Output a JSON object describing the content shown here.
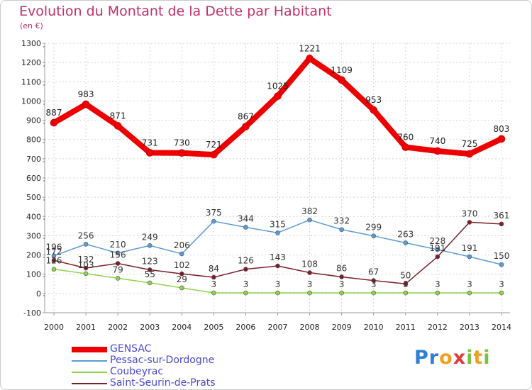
{
  "header": {
    "title": "Evolution du Montant de la Dette par Habitant",
    "unit": "(en €)"
  },
  "brand": {
    "letters": [
      {
        "ch": "P",
        "color": "#2f7fd6"
      },
      {
        "ch": "r",
        "color": "#2f7fd6"
      },
      {
        "ch": "o",
        "color": "#f0a020"
      },
      {
        "ch": "x",
        "color": "#e03a3a"
      },
      {
        "ch": "i",
        "color": "#7ac043"
      },
      {
        "ch": "t",
        "color": "#f0a020"
      },
      {
        "ch": "i",
        "color": "#7ac043"
      }
    ]
  },
  "chart_data": {
    "type": "line",
    "x": [
      2000,
      2001,
      2002,
      2003,
      2004,
      2005,
      2006,
      2007,
      2008,
      2009,
      2010,
      2011,
      2012,
      2013,
      2014
    ],
    "x_tick_labels": [
      "2000",
      "2001",
      "2002",
      "2003",
      "2004",
      "2005",
      "2006",
      "2007",
      "2008",
      "2009",
      "2010",
      "2011",
      "2012",
      "2013",
      "2014"
    ],
    "y_tick_labels": [
      "-100",
      "0",
      "100",
      "200",
      "300",
      "400",
      "500",
      "600",
      "700",
      "800",
      "900",
      "1000",
      "1100",
      "1200",
      "1300"
    ],
    "ylim": [
      -100,
      1300
    ],
    "grid": true,
    "legend_position": "bottom-left",
    "series": [
      {
        "name": "GENSAC",
        "color": "#ee0000",
        "values": [
          887,
          983,
          871,
          731,
          730,
          721,
          867,
          1025,
          1221,
          1109,
          953,
          760,
          740,
          725,
          803
        ]
      },
      {
        "name": "Pessac-sur-Dordogne",
        "color": "#5b9bd5",
        "values": [
          196,
          256,
          210,
          249,
          206,
          375,
          344,
          315,
          382,
          332,
          299,
          263,
          228,
          191,
          150
        ]
      },
      {
        "name": "Coubeyrac",
        "color": "#92d050",
        "values": [
          126,
          103,
          79,
          55,
          29,
          3,
          3,
          3,
          3,
          3,
          3,
          3,
          3,
          3,
          3
        ]
      },
      {
        "name": "Saint-Seurin-de-Prats",
        "color": "#7b1f2a",
        "values": [
          172,
          132,
          156,
          123,
          102,
          84,
          126,
          143,
          108,
          86,
          67,
          50,
          191,
          370,
          361
        ]
      }
    ]
  }
}
